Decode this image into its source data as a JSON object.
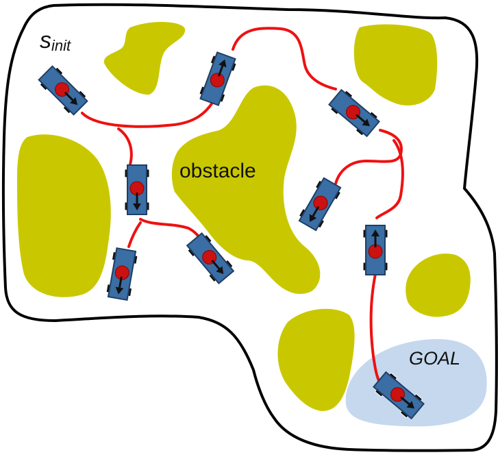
{
  "labels": {
    "start_main": "s",
    "start_sub": "init",
    "obstacle": "obstacle",
    "goal": "GOAL"
  },
  "colors": {
    "obstacle_fill": "#c9c800",
    "goal_fill": "#c5d8ee",
    "path": "#ee1111",
    "car_body": "#3a6ea5",
    "car_center": "#cc1111",
    "wheel": "#111111",
    "boundary": "#000000"
  },
  "icons": {
    "car": "car-icon",
    "direction": "arrow-icon"
  }
}
